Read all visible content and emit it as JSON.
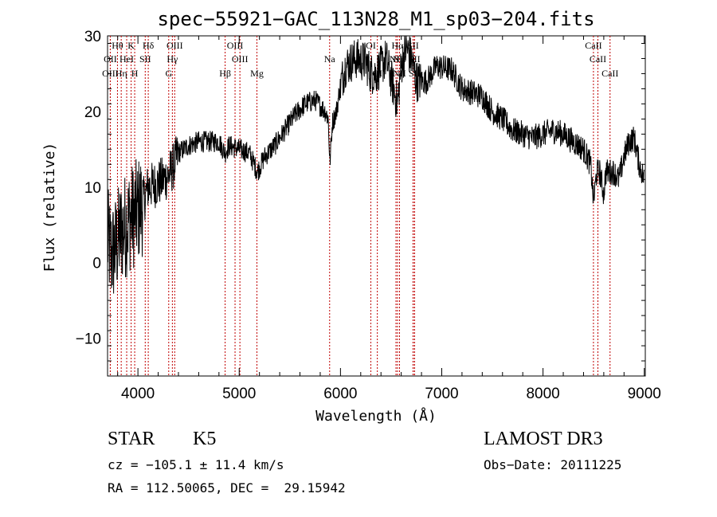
{
  "chart_data": {
    "type": "line",
    "title": "spec−55921−GAC_113N28_M1_sp03−204.fits",
    "xlabel": "Wavelength (Å)",
    "ylabel": "Flux (relative)",
    "xlim": [
      3700,
      9010
    ],
    "ylim": [
      -15,
      30
    ],
    "xticks": [
      4000,
      5000,
      6000,
      7000,
      8000,
      9000
    ],
    "xtick_labels": [
      "4000",
      "5000",
      "6000",
      "7000",
      "8000",
      "9000"
    ],
    "yticks": [
      -10,
      0,
      10,
      20,
      30
    ],
    "ytick_labels": [
      "−10",
      "0",
      "10",
      "20",
      "30"
    ],
    "anchors": [
      [
        3700,
        3
      ],
      [
        3740,
        1
      ],
      [
        3780,
        2
      ],
      [
        3830,
        4
      ],
      [
        3880,
        5
      ],
      [
        3930,
        6
      ],
      [
        3980,
        6.5
      ],
      [
        4050,
        8
      ],
      [
        4100,
        10
      ],
      [
        4200,
        10.5
      ],
      [
        4300,
        11.5
      ],
      [
        4360,
        13
      ],
      [
        4400,
        14.5
      ],
      [
        4500,
        15.5
      ],
      [
        4600,
        16
      ],
      [
        4700,
        16
      ],
      [
        4800,
        16
      ],
      [
        4860,
        14.5
      ],
      [
        4900,
        15.5
      ],
      [
        5000,
        15
      ],
      [
        5100,
        14.5
      ],
      [
        5180,
        12
      ],
      [
        5250,
        14
      ],
      [
        5350,
        15.5
      ],
      [
        5450,
        17.5
      ],
      [
        5550,
        19.5
      ],
      [
        5650,
        21
      ],
      [
        5750,
        21.5
      ],
      [
        5850,
        20
      ],
      [
        5880,
        19
      ],
      [
        5895,
        13
      ],
      [
        5920,
        18.5
      ],
      [
        5960,
        20
      ],
      [
        6000,
        23.5
      ],
      [
        6050,
        26
      ],
      [
        6150,
        27
      ],
      [
        6250,
        26.5
      ],
      [
        6300,
        25
      ],
      [
        6350,
        25
      ],
      [
        6450,
        27
      ],
      [
        6563,
        21
      ],
      [
        6600,
        26
      ],
      [
        6650,
        28.5
      ],
      [
        6700,
        27
      ],
      [
        6750,
        24
      ],
      [
        6850,
        24
      ],
      [
        6950,
        26
      ],
      [
        7100,
        25.5
      ],
      [
        7200,
        23
      ],
      [
        7300,
        22.5
      ],
      [
        7400,
        22
      ],
      [
        7500,
        20
      ],
      [
        7600,
        19
      ],
      [
        7700,
        17.5
      ],
      [
        7800,
        17
      ],
      [
        7900,
        16.5
      ],
      [
        8000,
        17
      ],
      [
        8100,
        17.5
      ],
      [
        8200,
        17
      ],
      [
        8300,
        16
      ],
      [
        8400,
        15
      ],
      [
        8470,
        13
      ],
      [
        8500,
        8
      ],
      [
        8530,
        12
      ],
      [
        8560,
        12
      ],
      [
        8600,
        9
      ],
      [
        8620,
        12
      ],
      [
        8700,
        12
      ],
      [
        8750,
        11
      ],
      [
        8800,
        14
      ],
      [
        8850,
        16
      ],
      [
        8900,
        16.5
      ],
      [
        8950,
        13
      ],
      [
        9000,
        11
      ]
    ],
    "line_list": [
      {
        "label": "Hθ",
        "wave": 3798,
        "row": 1
      },
      {
        "label": "K",
        "wave": 3933,
        "row": 1
      },
      {
        "label": "Hδ",
        "wave": 4102,
        "row": 1
      },
      {
        "label": "OIII",
        "wave": 4363,
        "row": 1
      },
      {
        "label": "OIII",
        "wave": 4959,
        "row": 1
      },
      {
        "label": "OI",
        "wave": 6300,
        "row": 1
      },
      {
        "label": "Hα",
        "wave": 6563,
        "row": 1
      },
      {
        "label": "SII",
        "wave": 6716,
        "row": 1
      },
      {
        "label": "CaII",
        "wave": 8498,
        "row": 1
      },
      {
        "label": "OII",
        "wave": 3727,
        "row": 2
      },
      {
        "label": "HeI",
        "wave": 3889,
        "row": 2
      },
      {
        "label": "SII",
        "wave": 4072,
        "row": 2
      },
      {
        "label": "Hγ",
        "wave": 4340,
        "row": 2
      },
      {
        "label": "OIII",
        "wave": 5007,
        "row": 2
      },
      {
        "label": "Na",
        "wave": 5893,
        "row": 2
      },
      {
        "label": "NII",
        "wave": 6548,
        "row": 2
      },
      {
        "label": "NII",
        "wave": 6583,
        "row": 2
      },
      {
        "label": "SII",
        "wave": 6731,
        "row": 2
      },
      {
        "label": "CaII",
        "wave": 8542,
        "row": 2
      },
      {
        "label": "OIII",
        "wave": 3727,
        "row": 3
      },
      {
        "label": "Hη",
        "wave": 3835,
        "row": 3
      },
      {
        "label": "H",
        "wave": 3968,
        "row": 3
      },
      {
        "label": "G",
        "wave": 4304,
        "row": 3
      },
      {
        "label": "Hβ",
        "wave": 4861,
        "row": 3
      },
      {
        "label": "Mg",
        "wave": 5175,
        "row": 3
      },
      {
        "label": "OI",
        "wave": 6364,
        "row": 3
      },
      {
        "label": "NII",
        "wave": 6583,
        "row": 3
      },
      {
        "label": "SII",
        "wave": 6731,
        "row": 3
      },
      {
        "label": "CaII",
        "wave": 8662,
        "row": 3
      }
    ],
    "line_color": "#c00000",
    "spectrum_color": "#000000"
  },
  "info": {
    "class": "STAR",
    "subclass": "K5",
    "survey": "LAMOST DR3",
    "cz": "cz = −105.1 ± 11.4 km/s",
    "obs_date": "Obs−Date: 20111225",
    "radec": "RA = 112.50065, DEC =  29.15942"
  }
}
